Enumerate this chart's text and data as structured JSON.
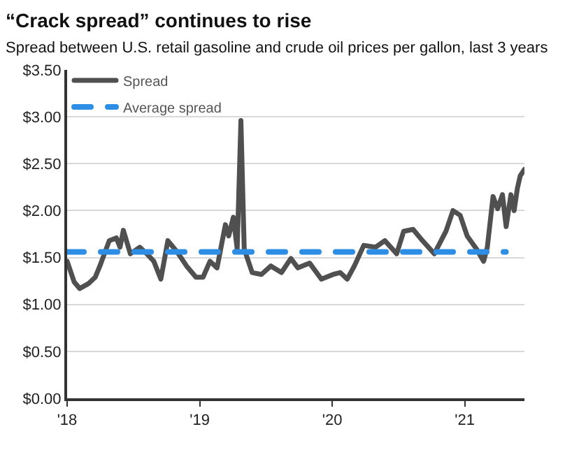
{
  "chart_data": {
    "type": "line",
    "title": "“Crack spread” continues to rise",
    "subtitle": "Spread between U.S. retail gasoline and crude oil prices per gallon, last 3 years",
    "series": [
      {
        "name": "Spread",
        "color": "#505050",
        "line_style": "solid",
        "x": [
          2018.0,
          2018.053,
          2018.095,
          2018.159,
          2018.212,
          2018.247,
          2018.318,
          2018.371,
          2018.399,
          2018.424,
          2018.477,
          2018.548,
          2018.601,
          2018.654,
          2018.707,
          2018.76,
          2018.83,
          2018.901,
          2018.972,
          2019.025,
          2019.078,
          2019.131,
          2019.194,
          2019.219,
          2019.254,
          2019.283,
          2019.311,
          2019.336,
          2019.396,
          2019.466,
          2019.537,
          2019.617,
          2019.688,
          2019.741,
          2019.83,
          2019.918,
          2020.007,
          2020.06,
          2020.113,
          2020.167,
          2020.238,
          2020.326,
          2020.397,
          2020.486,
          2020.539,
          2020.61,
          2020.681,
          2020.77,
          2020.858,
          2020.911,
          2020.965,
          2021.018,
          2021.089,
          2021.142,
          2021.17,
          2021.213,
          2021.248,
          2021.284,
          2021.312,
          2021.348,
          2021.372,
          2021.397,
          2021.418,
          2021.45
        ],
        "values": [
          1.46,
          1.24,
          1.17,
          1.22,
          1.29,
          1.41,
          1.68,
          1.71,
          1.61,
          1.79,
          1.54,
          1.61,
          1.54,
          1.46,
          1.27,
          1.68,
          1.56,
          1.41,
          1.29,
          1.29,
          1.46,
          1.39,
          1.85,
          1.73,
          1.93,
          1.59,
          2.96,
          1.59,
          1.34,
          1.32,
          1.41,
          1.34,
          1.49,
          1.39,
          1.44,
          1.27,
          1.32,
          1.34,
          1.27,
          1.41,
          1.63,
          1.61,
          1.68,
          1.54,
          1.78,
          1.8,
          1.68,
          1.54,
          1.78,
          2.0,
          1.95,
          1.73,
          1.59,
          1.46,
          1.61,
          2.15,
          2.02,
          2.17,
          1.83,
          2.17,
          2.0,
          2.24,
          2.37,
          2.44
        ]
      },
      {
        "name": "Average spread",
        "color": "#2e8ee6",
        "line_style": "dashed",
        "x": [
          2018.0,
          2021.31
        ],
        "values": [
          1.56,
          1.56
        ]
      }
    ],
    "xlim": [
      2018.0,
      2021.45
    ],
    "xticks": [
      {
        "value": 2018,
        "label": "'18"
      },
      {
        "value": 2019,
        "label": "'19"
      },
      {
        "value": 2020,
        "label": "'20"
      },
      {
        "value": 2021,
        "label": "'21"
      }
    ],
    "ylim": [
      0,
      3.5
    ],
    "yticks": [
      {
        "value": 0,
        "label": "$0.00"
      },
      {
        "value": 0.5,
        "label": "$0.50"
      },
      {
        "value": 1,
        "label": "$1.00"
      },
      {
        "value": 1.5,
        "label": "$1.50"
      },
      {
        "value": 2,
        "label": "$2.00"
      },
      {
        "value": 2.5,
        "label": "$2.50"
      },
      {
        "value": 3,
        "label": "$3.00"
      },
      {
        "value": 3.5,
        "label": "$3.50"
      }
    ],
    "grid": "y",
    "legend": "top left"
  }
}
